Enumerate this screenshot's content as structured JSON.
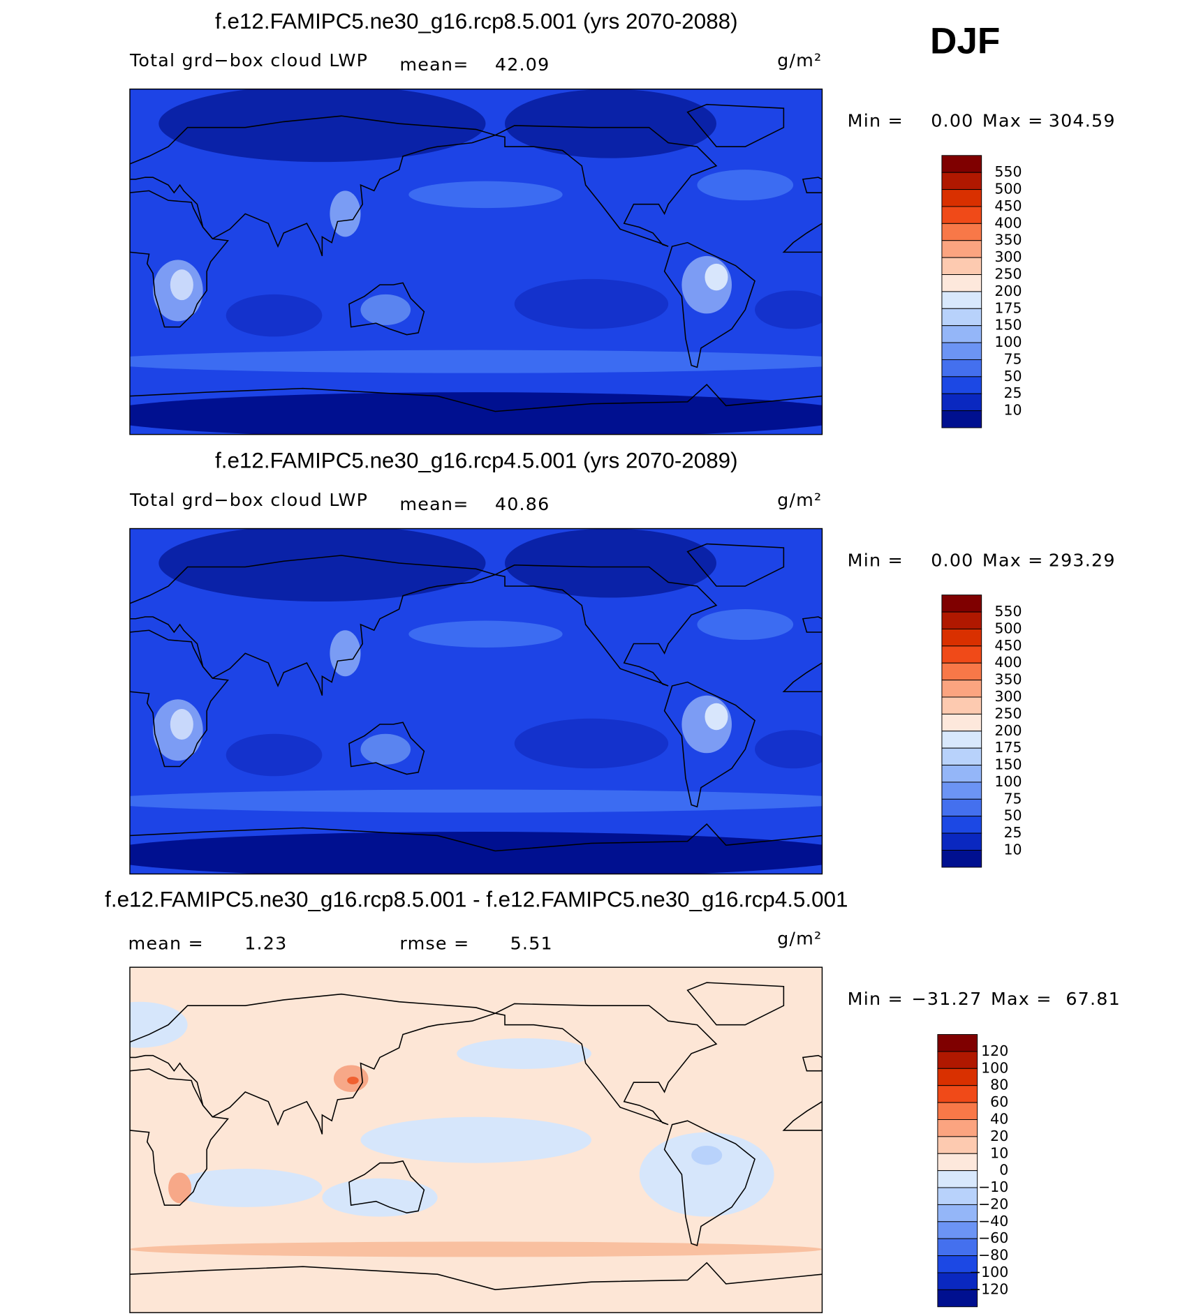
{
  "season": "DJF",
  "panels": [
    {
      "title": "f.e12.FAMIPC5.ne30_g16.rcp8.5.001 (yrs 2070-2088)",
      "label": "Total grd−box cloud LWP",
      "mean_label": "mean=",
      "mean": "42.09",
      "units": "g/m²",
      "min_label": "Min =",
      "min": "0.00",
      "max_label": "Max =",
      "max": "304.59",
      "colorbar": {
        "levels": [
          "550",
          "500",
          "450",
          "400",
          "350",
          "300",
          "250",
          "200",
          "175",
          "150",
          "100",
          "75",
          "50",
          "25",
          "10"
        ],
        "colors": [
          "#7f0000",
          "#b01800",
          "#d93000",
          "#f04a18",
          "#f87848",
          "#fba480",
          "#fdcab0",
          "#fde8dc",
          "#d8e8fc",
          "#b8d2fb",
          "#94b6f8",
          "#6c94f4",
          "#4470ee",
          "#1c48e4",
          "#0a28c0",
          "#001090"
        ]
      }
    },
    {
      "title": "f.e12.FAMIPC5.ne30_g16.rcp4.5.001 (yrs 2070-2089)",
      "label": "Total grd−box cloud LWP",
      "mean_label": "mean=",
      "mean": "40.86",
      "units": "g/m²",
      "min_label": "Min =",
      "min": "0.00",
      "max_label": "Max =",
      "max": "293.29",
      "colorbar": {
        "levels": [
          "550",
          "500",
          "450",
          "400",
          "350",
          "300",
          "250",
          "200",
          "175",
          "150",
          "100",
          "75",
          "50",
          "25",
          "10"
        ],
        "colors": [
          "#7f0000",
          "#b01800",
          "#d93000",
          "#f04a18",
          "#f87848",
          "#fba480",
          "#fdcab0",
          "#fde8dc",
          "#d8e8fc",
          "#b8d2fb",
          "#94b6f8",
          "#6c94f4",
          "#4470ee",
          "#1c48e4",
          "#0a28c0",
          "#001090"
        ]
      }
    },
    {
      "title": "f.e12.FAMIPC5.ne30_g16.rcp8.5.001 - f.e12.FAMIPC5.ne30_g16.rcp4.5.001",
      "mean_label": "mean =",
      "mean": "1.23",
      "rmse_label": "rmse =",
      "rmse": "5.51",
      "units": "g/m²",
      "min_label": "Min =",
      "min": "−31.27",
      "max_label": "Max =",
      "max": "67.81",
      "colorbar": {
        "levels": [
          "120",
          "100",
          "80",
          "60",
          "40",
          "20",
          "10",
          "0",
          "−10",
          "−20",
          "−40",
          "−60",
          "−80",
          "−100",
          "−120"
        ],
        "colors": [
          "#7f0000",
          "#b01800",
          "#d93000",
          "#f04a18",
          "#f87848",
          "#fba480",
          "#fdcab0",
          "#fde8dc",
          "#d8e8fc",
          "#b8d2fb",
          "#94b6f8",
          "#6c94f4",
          "#4470ee",
          "#1c48e4",
          "#0a28c0",
          "#001090"
        ]
      }
    }
  ]
}
